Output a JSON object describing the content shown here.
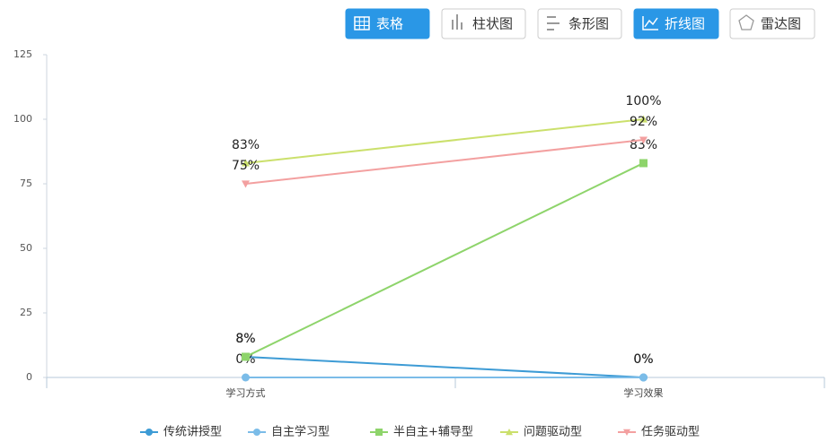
{
  "toolbar": {
    "buttons": [
      {
        "label": "表格",
        "active": true
      },
      {
        "label": "柱状图",
        "active": false
      },
      {
        "label": "条形图",
        "active": false
      },
      {
        "label": "折线图",
        "active": true
      },
      {
        "label": "雷达图",
        "active": false
      }
    ]
  },
  "chart_data": {
    "type": "line",
    "categories": [
      "学习方式",
      "学习效果"
    ],
    "ylim": [
      0,
      125
    ],
    "yticks": [
      0,
      25,
      50,
      75,
      100,
      125
    ],
    "series": [
      {
        "name": "传统讲授型",
        "color": "#3d9bd5",
        "marker": "circle",
        "values": [
          8,
          0
        ],
        "value_labels": [
          "8%",
          "0%"
        ]
      },
      {
        "name": "自主学习型",
        "color": "#7bbce8",
        "marker": "circle",
        "values": [
          0,
          0
        ],
        "value_labels": [
          "0%",
          "0%"
        ]
      },
      {
        "name": "半自主+辅导型",
        "color": "#8ed46b",
        "marker": "square",
        "values": [
          8,
          83
        ],
        "value_labels": [
          "8%",
          "83%"
        ]
      },
      {
        "name": "问题驱动型",
        "color": "#cbe06c",
        "marker": "triangle",
        "values": [
          83,
          100
        ],
        "value_labels": [
          "83%",
          "100%"
        ]
      },
      {
        "name": "任务驱动型",
        "color": "#f3a0a0",
        "marker": "triangle-down",
        "values": [
          75,
          92
        ],
        "value_labels": [
          "75%",
          "92%"
        ]
      }
    ]
  }
}
